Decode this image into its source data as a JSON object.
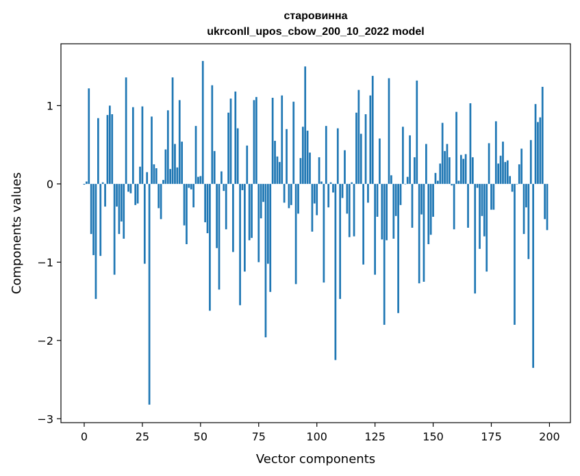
{
  "chart_data": {
    "type": "bar",
    "title_line1": "старовинна",
    "title_line2": "ukrconll_upos_cbow_200_10_2022 model",
    "xlabel": "Vector components",
    "ylabel": "Components values",
    "xlim": [
      -10,
      209
    ],
    "ylim": [
      -3.05,
      1.79
    ],
    "xticks": [
      0,
      25,
      50,
      75,
      100,
      125,
      150,
      175,
      200
    ],
    "xtick_labels": [
      "0",
      "25",
      "50",
      "75",
      "100",
      "125",
      "150",
      "175",
      "200"
    ],
    "yticks": [
      -3,
      -2,
      -1,
      0,
      1
    ],
    "ytick_labels": [
      "−3",
      "−2",
      "−1",
      "0",
      "1"
    ],
    "grid": false,
    "bar_color": "#1f77b4",
    "x": [
      0,
      1,
      2,
      3,
      4,
      5,
      6,
      7,
      8,
      9,
      10,
      11,
      12,
      13,
      14,
      15,
      16,
      17,
      18,
      19,
      20,
      21,
      22,
      23,
      24,
      25,
      26,
      27,
      28,
      29,
      30,
      31,
      32,
      33,
      34,
      35,
      36,
      37,
      38,
      39,
      40,
      41,
      42,
      43,
      44,
      45,
      46,
      47,
      48,
      49,
      50,
      51,
      52,
      53,
      54,
      55,
      56,
      57,
      58,
      59,
      60,
      61,
      62,
      63,
      64,
      65,
      66,
      67,
      68,
      69,
      70,
      71,
      72,
      73,
      74,
      75,
      76,
      77,
      78,
      79,
      80,
      81,
      82,
      83,
      84,
      85,
      86,
      87,
      88,
      89,
      90,
      91,
      92,
      93,
      94,
      95,
      96,
      97,
      98,
      99,
      100,
      101,
      102,
      103,
      104,
      105,
      106,
      107,
      108,
      109,
      110,
      111,
      112,
      113,
      114,
      115,
      116,
      117,
      118,
      119,
      120,
      121,
      122,
      123,
      124,
      125,
      126,
      127,
      128,
      129,
      130,
      131,
      132,
      133,
      134,
      135,
      136,
      137,
      138,
      139,
      140,
      141,
      142,
      143,
      144,
      145,
      146,
      147,
      148,
      149,
      150,
      151,
      152,
      153,
      154,
      155,
      156,
      157,
      158,
      159,
      160,
      161,
      162,
      163,
      164,
      165,
      166,
      167,
      168,
      169,
      170,
      171,
      172,
      173,
      174,
      175,
      176,
      177,
      178,
      179,
      180,
      181,
      182,
      183,
      184,
      185,
      186,
      187,
      188,
      189,
      190,
      191,
      192,
      193,
      194,
      195,
      196,
      197,
      198,
      199
    ],
    "values": [
      -0.01,
      0.03,
      1.22,
      -0.64,
      -0.91,
      -1.47,
      0.84,
      -0.92,
      0.02,
      -0.29,
      0.88,
      1.0,
      0.89,
      -1.16,
      -0.29,
      -0.64,
      -0.48,
      -0.7,
      1.36,
      -0.1,
      -0.12,
      0.98,
      -0.27,
      -0.25,
      0.22,
      0.99,
      -1.02,
      0.15,
      -2.82,
      0.86,
      0.25,
      0.2,
      -0.31,
      -0.45,
      0.05,
      0.44,
      0.94,
      0.19,
      1.36,
      0.51,
      0.21,
      1.07,
      0.54,
      -0.53,
      -0.77,
      -0.05,
      -0.07,
      -0.3,
      0.74,
      0.09,
      0.1,
      1.57,
      -0.49,
      -0.63,
      -1.62,
      1.26,
      0.42,
      -0.82,
      -1.35,
      0.16,
      -0.09,
      -0.58,
      0.91,
      1.09,
      -0.87,
      1.18,
      0.71,
      -1.55,
      -0.08,
      -1.12,
      0.49,
      -0.72,
      -0.69,
      1.07,
      1.11,
      -1.0,
      -0.44,
      -0.23,
      -1.96,
      -1.02,
      -1.38,
      1.1,
      0.55,
      0.35,
      0.28,
      1.13,
      -0.24,
      0.7,
      -0.31,
      -0.27,
      1.05,
      -1.28,
      -0.38,
      0.33,
      0.73,
      1.5,
      0.68,
      0.4,
      -0.61,
      -0.25,
      -0.4,
      0.34,
      0.03,
      -1.26,
      0.74,
      -0.3,
      0.02,
      -0.11,
      -2.25,
      0.71,
      -1.47,
      -0.18,
      0.43,
      -0.38,
      -0.68,
      0.02,
      -0.67,
      0.91,
      1.2,
      0.64,
      -1.03,
      0.89,
      -0.24,
      1.13,
      1.38,
      -1.16,
      -0.42,
      0.58,
      -0.71,
      -1.8,
      -0.72,
      1.35,
      0.11,
      -0.7,
      -0.41,
      -1.65,
      -0.27,
      0.73,
      0.0,
      0.09,
      0.62,
      -0.56,
      0.34,
      1.32,
      -1.27,
      -0.39,
      -1.25,
      0.51,
      -0.77,
      -0.65,
      -0.42,
      0.14,
      0.04,
      0.26,
      0.78,
      0.42,
      0.51,
      0.34,
      -0.02,
      -0.58,
      0.92,
      0.04,
      0.37,
      0.32,
      0.38,
      -0.56,
      1.03,
      0.34,
      -1.4,
      -0.05,
      -0.83,
      -0.41,
      -0.67,
      -1.12,
      0.52,
      -0.33,
      -0.33,
      0.8,
      0.26,
      0.36,
      0.54,
      0.28,
      0.3,
      0.1,
      -0.1,
      -1.8,
      0.0,
      0.25,
      0.45,
      -0.64,
      -0.3,
      -0.96,
      0.56,
      -2.35,
      1.02,
      0.79,
      0.85,
      1.24,
      -0.45,
      -0.59
    ]
  }
}
